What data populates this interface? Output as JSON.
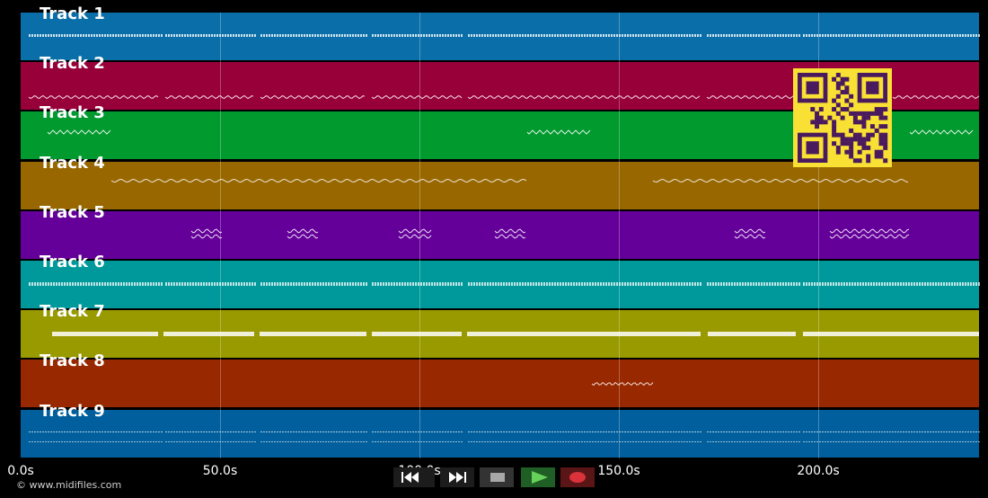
{
  "tracks": [
    {
      "label": "Track 1",
      "color": "#0a6ea8"
    },
    {
      "label": "Track 2",
      "color": "#98003a"
    },
    {
      "label": "Track 3",
      "color": "#009a2e"
    },
    {
      "label": "Track 4",
      "color": "#986700"
    },
    {
      "label": "Track 5",
      "color": "#640099"
    },
    {
      "label": "Track 6",
      "color": "#00999b"
    },
    {
      "label": "Track 7",
      "color": "#989a00"
    },
    {
      "label": "Track 8",
      "color": "#982800"
    },
    {
      "label": "Track 9",
      "color": "#005f9c"
    }
  ],
  "timeline": {
    "ticks": [
      "0.0s",
      "50.0s",
      "100.0s",
      "150.0s",
      "200.0s"
    ]
  },
  "footer": {
    "copyright": "© www.midifiles.com"
  },
  "transport": {
    "rewind_icon": "rewind-icon",
    "forward_icon": "fast-forward-icon",
    "stop_icon": "stop-icon",
    "play_icon": "play-icon",
    "record_icon": "record-icon"
  },
  "qr_icon": "qr-code-icon"
}
